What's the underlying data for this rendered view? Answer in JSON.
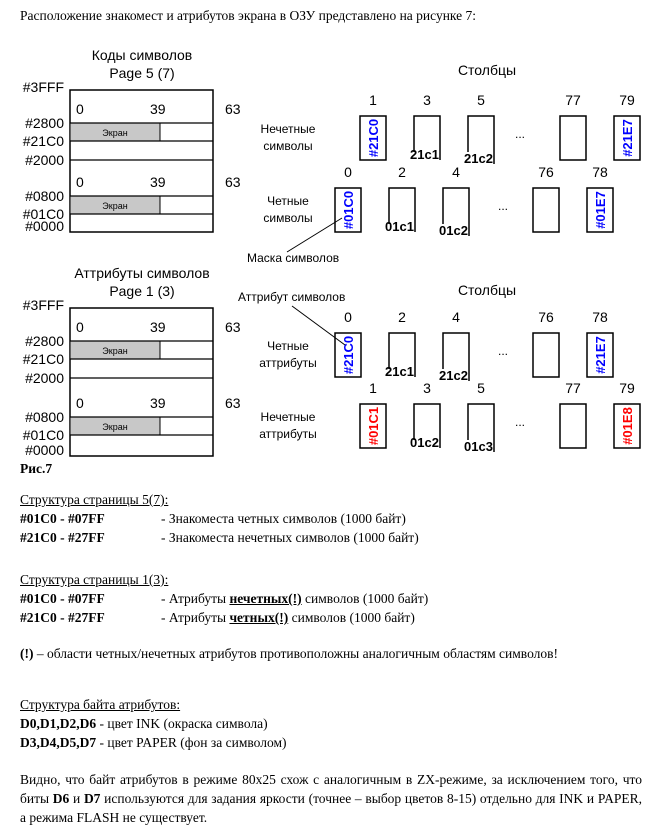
{
  "intro": "Расположение знакомест и атрибутов экрана в ОЗУ представлено на рисунке 7:",
  "figure": {
    "caption": "Рис.7",
    "memory_maps": [
      {
        "title": "Коды символов",
        "page": "Page 5 (7)",
        "top_addr": "#3FFF",
        "bands": [
          {
            "col_start": "0",
            "col_mid": "39",
            "col_end": "63",
            "band_label": "Экран",
            "addrs": [
              "#2800",
              "#21C0",
              "#2000"
            ]
          },
          {
            "col_start": "0",
            "col_mid": "39",
            "col_end": "63",
            "band_label": "Экран",
            "addrs": [
              "#0800",
              "#01C0",
              "#0000"
            ]
          }
        ]
      },
      {
        "title": "Аттрибуты символов",
        "page": "Page 1 (3)",
        "top_addr": "#3FFF",
        "bands": [
          {
            "col_start": "0",
            "col_mid": "39",
            "col_end": "63",
            "band_label": "Экран",
            "addrs": [
              "#2800",
              "#21C0",
              "#2000"
            ]
          },
          {
            "col_start": "0",
            "col_mid": "39",
            "col_end": "63",
            "band_label": "Экран",
            "addrs": [
              "#0800",
              "#01C0",
              "#0000"
            ]
          }
        ]
      }
    ],
    "column_groups": [
      {
        "header": "Столбцы",
        "callout": "Маска символов",
        "rows": [
          {
            "parity": "odd",
            "label_lines": [
              "Нечетные",
              "символы"
            ],
            "cols": [
              {
                "num": "1",
                "kind": "filled",
                "code": "#21C0",
                "color": "#0000ff"
              },
              {
                "num": "3",
                "kind": "open",
                "code": "21c1"
              },
              {
                "num": "5",
                "kind": "open",
                "code": "21c2"
              },
              {
                "kind": "dots",
                "code": "..."
              },
              {
                "num": "77",
                "kind": "blank"
              },
              {
                "num": "79",
                "kind": "filled",
                "code": "#21E7",
                "color": "#0000ff"
              }
            ]
          },
          {
            "parity": "even",
            "label_lines": [
              "Четные",
              "символы"
            ],
            "cols": [
              {
                "num": "0",
                "kind": "filled",
                "code": "#01C0",
                "color": "#0000ff"
              },
              {
                "num": "2",
                "kind": "open",
                "code": "01c1"
              },
              {
                "num": "4",
                "kind": "open",
                "code": "01c2"
              },
              {
                "kind": "dots",
                "code": "..."
              },
              {
                "num": "76",
                "kind": "blank"
              },
              {
                "num": "78",
                "kind": "filled",
                "code": "#01E7",
                "color": "#0000ff"
              }
            ]
          }
        ]
      },
      {
        "header": "Столбцы",
        "callout": "Аттрибут символов",
        "rows": [
          {
            "parity": "even",
            "label_lines": [
              "Четные",
              "аттрибуты"
            ],
            "cols": [
              {
                "num": "0",
                "kind": "filled",
                "code": "#21C0",
                "color": "#0000ff"
              },
              {
                "num": "2",
                "kind": "open",
                "code": "21c1"
              },
              {
                "num": "4",
                "kind": "open",
                "code": "21c2"
              },
              {
                "kind": "dots",
                "code": "..."
              },
              {
                "num": "76",
                "kind": "blank"
              },
              {
                "num": "78",
                "kind": "filled",
                "code": "#21E7",
                "color": "#0000ff"
              }
            ]
          },
          {
            "parity": "odd",
            "label_lines": [
              "Нечетные",
              "аттрибуты"
            ],
            "cols": [
              {
                "num": "1",
                "kind": "filled",
                "code": "#01C1",
                "color": "#ff0000"
              },
              {
                "num": "3",
                "kind": "open",
                "code": "01c2"
              },
              {
                "num": "5",
                "kind": "open",
                "code": "01c3"
              },
              {
                "kind": "dots",
                "code": "..."
              },
              {
                "num": "77",
                "kind": "blank"
              },
              {
                "num": "79",
                "kind": "filled",
                "code": "#01E8",
                "color": "#ff0000"
              }
            ]
          }
        ]
      }
    ]
  },
  "page5": {
    "heading": "Структура страницы 5(7):",
    "rows": [
      {
        "range": "#01C0 - #07FF",
        "desc": "- Знакоместа четных символов (1000 байт)"
      },
      {
        "range": "#21C0 - #27FF",
        "desc": "- Знакоместа нечетных символов (1000 байт)"
      }
    ]
  },
  "page1": {
    "heading": "Структура страницы 1(3):",
    "rows": [
      {
        "range": "#01C0 - #07FF",
        "pre": "- Атрибуты ",
        "emph": "нечетных(!)",
        "post": " символов (1000 байт)"
      },
      {
        "range": "#21C0 - #27FF",
        "pre": "- Атрибуты ",
        "emph": "четных(!)",
        "post": " символов (1000 байт)"
      }
    ]
  },
  "note": {
    "mark": "(!)",
    "text": " – области четных/нечетных атрибутов противоположны аналогичным областям символов!"
  },
  "attr_byte": {
    "heading": "Структура байта атрибутов:",
    "rows": [
      {
        "bits": "D0,D1,D2,D6",
        "desc": " - цвет INK (окраска символа)"
      },
      {
        "bits": "D3,D4,D5,D7",
        "desc": " - цвет PAPER (фон за символом)"
      }
    ]
  },
  "conclusion": {
    "p1": "Видно, что байт атрибутов в режиме 80x25 схож с аналогичным в ZX-режиме, за исключением того, что биты ",
    "b1": "D6",
    "p2": " и ",
    "b2": "D7",
    "p3": " используются для задания яркости (точнее – выбор цветов 8-15) отдельно для INK и PAPER, а режима FLASH не существует."
  }
}
